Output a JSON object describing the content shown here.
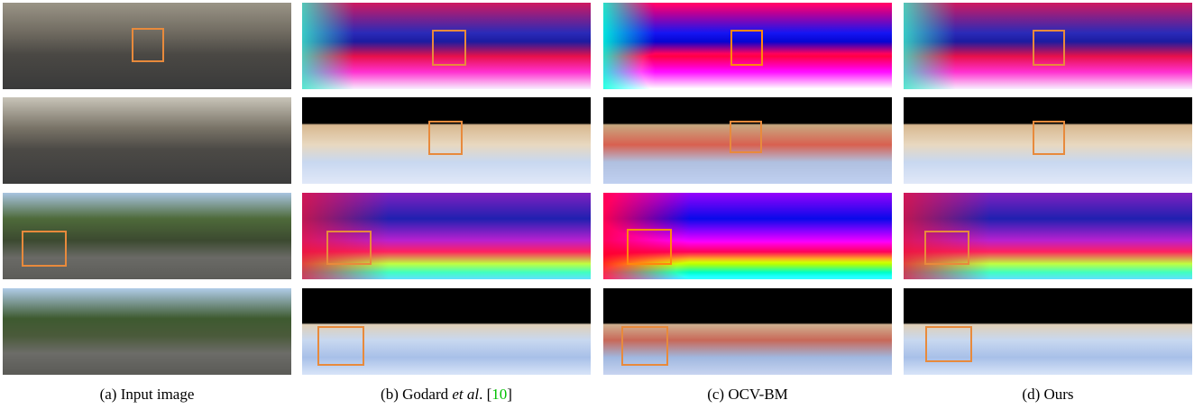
{
  "captions": [
    {
      "label": "(a) Input image"
    },
    {
      "label": "(b) Godard ",
      "italic": "et al",
      "after": ". [",
      "ref": "10",
      "close": "]"
    },
    {
      "label": "(c) OCV-BM"
    },
    {
      "label": "(d) Ours"
    }
  ]
}
